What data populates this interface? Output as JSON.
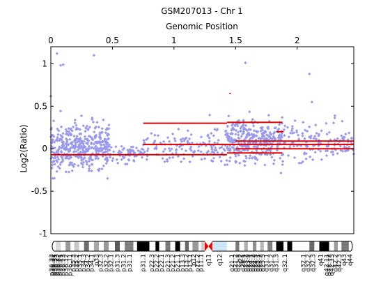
{
  "chart_data": {
    "type": "scatter",
    "title": "GSM207013 - Chr 1",
    "top_axis_label": "Genomic Position",
    "ylabel": "Log2(Ratio)",
    "xlim": [
      0,
      2.46
    ],
    "ylim": [
      -1,
      1.2
    ],
    "xticks": [
      {
        "value": 0,
        "label": "0"
      },
      {
        "value": 0.5,
        "label": "0.5"
      },
      {
        "value": 1,
        "label": "1"
      },
      {
        "value": 1.5,
        "label": "1.5"
      },
      {
        "value": 2,
        "label": "2"
      }
    ],
    "yticks": [
      {
        "value": 1,
        "label": "1"
      },
      {
        "value": 0.5,
        "label": "0.5"
      },
      {
        "value": 0,
        "label": "0"
      },
      {
        "value": -0.5,
        "label": "-0.5"
      },
      {
        "value": -1,
        "label": "-1"
      }
    ],
    "point_color": "#9999ee",
    "segment_color": "#dd0000",
    "points_clusters": [
      {
        "x_range": [
          0.0,
          0.48
        ],
        "y_mean": 0.02,
        "y_sd": 0.13,
        "count": 420
      },
      {
        "x_range": [
          0.48,
          0.75
        ],
        "y_mean": -0.06,
        "y_sd": 0.05,
        "count": 60
      },
      {
        "x_range": [
          0.75,
          1.43
        ],
        "y_mean": 0.02,
        "y_sd": 0.1,
        "count": 150
      },
      {
        "x_range": [
          1.43,
          1.88
        ],
        "y_mean": 0.1,
        "y_sd": 0.12,
        "count": 340
      },
      {
        "x_range": [
          1.88,
          2.46
        ],
        "y_mean": 0.08,
        "y_sd": 0.11,
        "count": 150
      }
    ],
    "outliers": [
      {
        "x": 0.0,
        "y": 0.62
      },
      {
        "x": 0.05,
        "y": 1.12
      },
      {
        "x": 0.08,
        "y": 0.98
      },
      {
        "x": 0.1,
        "y": 0.99
      },
      {
        "x": 0.35,
        "y": 1.1
      },
      {
        "x": 1.58,
        "y": 1.01
      },
      {
        "x": 2.1,
        "y": 0.88
      },
      {
        "x": 2.12,
        "y": 0.55
      },
      {
        "x": 0.62,
        "y": -0.18
      }
    ],
    "segments": [
      {
        "x0": 0.0,
        "x1": 1.43,
        "y": -0.07
      },
      {
        "x0": 0.75,
        "x1": 1.43,
        "y": 0.3
      },
      {
        "x0": 0.75,
        "x1": 2.46,
        "y": 0.05
      },
      {
        "x0": 1.43,
        "x1": 1.88,
        "y": 0.31
      },
      {
        "x0": 1.43,
        "x1": 1.88,
        "y": -0.05
      },
      {
        "x0": 1.5,
        "x1": 2.46,
        "y": 0.0
      },
      {
        "x0": 1.5,
        "x1": 2.46,
        "y": 0.09
      },
      {
        "x0": 1.83,
        "x1": 1.89,
        "y": 0.2
      },
      {
        "x0": 1.45,
        "x1": 1.46,
        "y": 0.65
      }
    ],
    "ideogram": {
      "bands": [
        {
          "x0": 0.0,
          "x1": 0.04,
          "color": "#ffffff"
        },
        {
          "x0": 0.04,
          "x1": 0.08,
          "color": "#d8d8d8"
        },
        {
          "x0": 0.08,
          "x1": 0.12,
          "color": "#ffffff"
        },
        {
          "x0": 0.12,
          "x1": 0.16,
          "color": "#9a9a9a"
        },
        {
          "x0": 0.16,
          "x1": 0.19,
          "color": "#ffffff"
        },
        {
          "x0": 0.19,
          "x1": 0.23,
          "color": "#c8c8c8"
        },
        {
          "x0": 0.23,
          "x1": 0.27,
          "color": "#ffffff"
        },
        {
          "x0": 0.27,
          "x1": 0.31,
          "color": "#6e6e6e"
        },
        {
          "x0": 0.31,
          "x1": 0.35,
          "color": "#ffffff"
        },
        {
          "x0": 0.35,
          "x1": 0.39,
          "color": "#a8a8a8"
        },
        {
          "x0": 0.39,
          "x1": 0.43,
          "color": "#ffffff"
        },
        {
          "x0": 0.43,
          "x1": 0.47,
          "color": "#9a9a9a"
        },
        {
          "x0": 0.47,
          "x1": 0.52,
          "color": "#ffffff"
        },
        {
          "x0": 0.52,
          "x1": 0.56,
          "color": "#5a5a5a"
        },
        {
          "x0": 0.56,
          "x1": 0.6,
          "color": "#ffffff"
        },
        {
          "x0": 0.6,
          "x1": 0.67,
          "color": "#808080"
        },
        {
          "x0": 0.67,
          "x1": 0.7,
          "color": "#ffffff"
        },
        {
          "x0": 0.7,
          "x1": 0.8,
          "color": "#000000"
        },
        {
          "x0": 0.8,
          "x1": 0.85,
          "color": "#ffffff"
        },
        {
          "x0": 0.85,
          "x1": 0.88,
          "color": "#000000"
        },
        {
          "x0": 0.88,
          "x1": 0.93,
          "color": "#ffffff"
        },
        {
          "x0": 0.93,
          "x1": 0.97,
          "color": "#7a7a7a"
        },
        {
          "x0": 0.97,
          "x1": 1.01,
          "color": "#ffffff"
        },
        {
          "x0": 1.01,
          "x1": 1.05,
          "color": "#000000"
        },
        {
          "x0": 1.05,
          "x1": 1.09,
          "color": "#ffffff"
        },
        {
          "x0": 1.09,
          "x1": 1.12,
          "color": "#6a6a6a"
        },
        {
          "x0": 1.12,
          "x1": 1.15,
          "color": "#ffffff"
        },
        {
          "x0": 1.15,
          "x1": 1.2,
          "color": "#9a9a9a"
        },
        {
          "x0": 1.2,
          "x1": 1.22,
          "color": "#ffffff"
        },
        {
          "x0": 1.22,
          "x1": 1.25,
          "color": "#d0d0d0"
        },
        {
          "x0": 1.31,
          "x1": 1.43,
          "color": "#cde6f7"
        },
        {
          "x0": 1.43,
          "x1": 1.5,
          "color": "#ffffff"
        },
        {
          "x0": 1.5,
          "x1": 1.53,
          "color": "#7a7a7a"
        },
        {
          "x0": 1.53,
          "x1": 1.57,
          "color": "#ffffff"
        },
        {
          "x0": 1.57,
          "x1": 1.6,
          "color": "#b0b0b0"
        },
        {
          "x0": 1.6,
          "x1": 1.64,
          "color": "#ffffff"
        },
        {
          "x0": 1.64,
          "x1": 1.67,
          "color": "#909090"
        },
        {
          "x0": 1.67,
          "x1": 1.7,
          "color": "#ffffff"
        },
        {
          "x0": 1.7,
          "x1": 1.73,
          "color": "#b8b8b8"
        },
        {
          "x0": 1.73,
          "x1": 1.76,
          "color": "#ffffff"
        },
        {
          "x0": 1.76,
          "x1": 1.8,
          "color": "#808080"
        },
        {
          "x0": 1.8,
          "x1": 1.83,
          "color": "#ffffff"
        },
        {
          "x0": 1.83,
          "x1": 1.89,
          "color": "#000000"
        },
        {
          "x0": 1.89,
          "x1": 1.92,
          "color": "#ffffff"
        },
        {
          "x0": 1.92,
          "x1": 1.96,
          "color": "#000000"
        },
        {
          "x0": 1.96,
          "x1": 2.1,
          "color": "#ffffff"
        },
        {
          "x0": 2.1,
          "x1": 2.14,
          "color": "#6a6a6a"
        },
        {
          "x0": 2.14,
          "x1": 2.18,
          "color": "#ffffff"
        },
        {
          "x0": 2.18,
          "x1": 2.26,
          "color": "#000000"
        },
        {
          "x0": 2.26,
          "x1": 2.3,
          "color": "#ffffff"
        },
        {
          "x0": 2.3,
          "x1": 2.33,
          "color": "#9a9a9a"
        },
        {
          "x0": 2.33,
          "x1": 2.36,
          "color": "#ffffff"
        },
        {
          "x0": 2.36,
          "x1": 2.42,
          "color": "#7a7a7a"
        },
        {
          "x0": 2.42,
          "x1": 2.46,
          "color": "#ffffff"
        }
      ],
      "centromere": {
        "x0": 1.25,
        "x1": 1.31,
        "color": "#ee0000"
      },
      "band_labels": [
        {
          "x": 0.005,
          "label": "p36.33"
        },
        {
          "x": 0.018,
          "label": "p36.32"
        },
        {
          "x": 0.03,
          "label": "p36.31"
        },
        {
          "x": 0.045,
          "label": "p36.23"
        },
        {
          "x": 0.06,
          "label": "p36.22"
        },
        {
          "x": 0.075,
          "label": "p36.21"
        },
        {
          "x": 0.1,
          "label": "p36.13"
        },
        {
          "x": 0.125,
          "label": "p36.12"
        },
        {
          "x": 0.155,
          "label": "p36.11"
        },
        {
          "x": 0.185,
          "label": "p35.3"
        },
        {
          "x": 0.21,
          "label": "p35.2"
        },
        {
          "x": 0.235,
          "label": "p35.1"
        },
        {
          "x": 0.265,
          "label": "p34.3"
        },
        {
          "x": 0.3,
          "label": "p34.2"
        },
        {
          "x": 0.33,
          "label": "p34.1"
        },
        {
          "x": 0.37,
          "label": "p33"
        },
        {
          "x": 0.405,
          "label": "p32.3"
        },
        {
          "x": 0.45,
          "label": "p32.2"
        },
        {
          "x": 0.49,
          "label": "p32.1"
        },
        {
          "x": 0.54,
          "label": "p31.3"
        },
        {
          "x": 0.59,
          "label": "p31.2"
        },
        {
          "x": 0.64,
          "label": "p31.1"
        },
        {
          "x": 0.75,
          "label": "p31.1"
        },
        {
          "x": 0.82,
          "label": "p22.3"
        },
        {
          "x": 0.86,
          "label": "p22.2"
        },
        {
          "x": 0.9,
          "label": "p22.1"
        },
        {
          "x": 0.95,
          "label": "p21.3"
        },
        {
          "x": 0.99,
          "label": "p21.2"
        },
        {
          "x": 1.03,
          "label": "p21.1"
        },
        {
          "x": 1.07,
          "label": "p13.3"
        },
        {
          "x": 1.1,
          "label": "p13.2"
        },
        {
          "x": 1.13,
          "label": "p13.1"
        },
        {
          "x": 1.16,
          "label": "p12"
        },
        {
          "x": 1.19,
          "label": "p11.2"
        },
        {
          "x": 1.22,
          "label": "p11.1"
        },
        {
          "x": 1.28,
          "label": "q11"
        },
        {
          "x": 1.37,
          "label": "q12"
        },
        {
          "x": 1.47,
          "label": "q21.1"
        },
        {
          "x": 1.5,
          "label": "q21.2"
        },
        {
          "x": 1.52,
          "label": "q21.3"
        },
        {
          "x": 1.54,
          "label": "q22"
        },
        {
          "x": 1.56,
          "label": "q23.1"
        },
        {
          "x": 1.58,
          "label": "q23.2"
        },
        {
          "x": 1.6,
          "label": "q23.3"
        },
        {
          "x": 1.62,
          "label": "q24.1"
        },
        {
          "x": 1.64,
          "label": "q24.2"
        },
        {
          "x": 1.66,
          "label": "q24.3"
        },
        {
          "x": 1.68,
          "label": "q25.1"
        },
        {
          "x": 1.7,
          "label": "q25.2"
        },
        {
          "x": 1.72,
          "label": "q25.3"
        },
        {
          "x": 1.75,
          "label": "q31.1"
        },
        {
          "x": 1.79,
          "label": "q31.2"
        },
        {
          "x": 1.83,
          "label": "q31.3"
        },
        {
          "x": 1.9,
          "label": "q32.1"
        },
        {
          "x": 2.05,
          "label": "q32.1"
        },
        {
          "x": 2.09,
          "label": "q32.2"
        },
        {
          "x": 2.13,
          "label": "q32.3"
        },
        {
          "x": 2.19,
          "label": "q41"
        },
        {
          "x": 2.24,
          "label": "q42.11"
        },
        {
          "x": 2.26,
          "label": "q42.12"
        },
        {
          "x": 2.28,
          "label": "q42.13"
        },
        {
          "x": 2.31,
          "label": "q42.2"
        },
        {
          "x": 2.34,
          "label": "q42.3"
        },
        {
          "x": 2.38,
          "label": "q43"
        },
        {
          "x": 2.43,
          "label": "q44"
        }
      ]
    }
  }
}
